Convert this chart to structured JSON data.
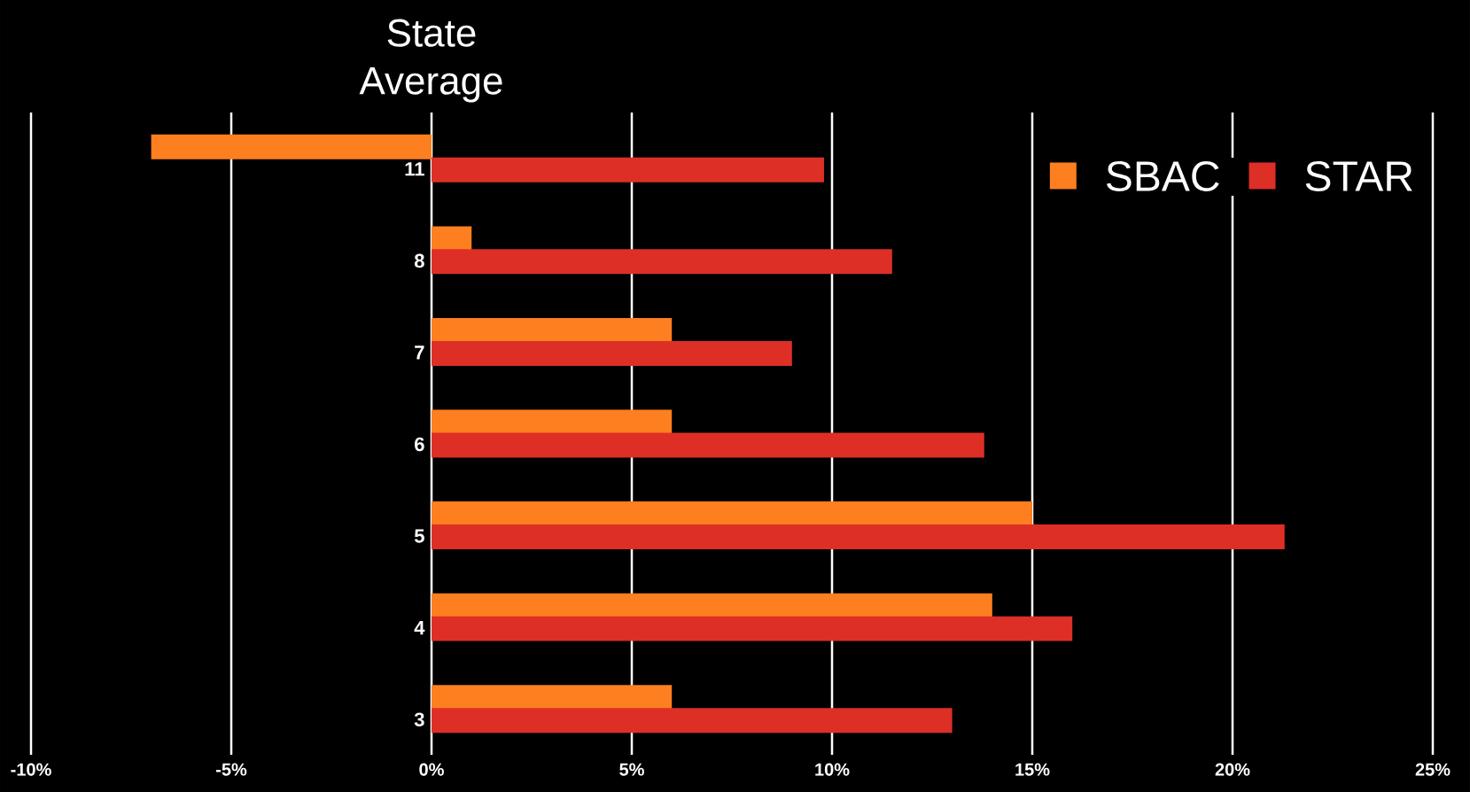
{
  "chart_data": {
    "type": "bar",
    "orientation": "horizontal",
    "title": "State Average",
    "categories": [
      "11",
      "8",
      "7",
      "6",
      "5",
      "4",
      "3"
    ],
    "series": [
      {
        "name": "SBAC",
        "color": "#fd7f1f",
        "values": [
          -7.0,
          1.0,
          6.0,
          6.0,
          15.0,
          14.0,
          6.0
        ]
      },
      {
        "name": "STAR",
        "color": "#de2f27",
        "values": [
          9.8,
          11.5,
          9.0,
          13.8,
          21.3,
          16.0,
          13.0
        ]
      }
    ],
    "xlim": [
      -10,
      25
    ],
    "xticks": [
      {
        "value": -10,
        "label": "-10%"
      },
      {
        "value": -5,
        "label": "-5%"
      },
      {
        "value": 0,
        "label": "0%"
      },
      {
        "value": 5,
        "label": "5%"
      },
      {
        "value": 10,
        "label": "10%"
      },
      {
        "value": 15,
        "label": "15%"
      },
      {
        "value": 20,
        "label": "20%"
      },
      {
        "value": 25,
        "label": "25%"
      }
    ],
    "grid": "x",
    "legend": "top right"
  }
}
